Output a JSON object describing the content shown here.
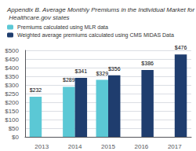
{
  "chart_data": {
    "type": "bar",
    "title": "Appendix B. Average Monthly Premiums in the Individual Market for Healthcare.gov states",
    "categories": [
      "2013",
      "2014",
      "2015",
      "2016",
      "2017"
    ],
    "series": [
      {
        "name": "Premiums calculated using MLR data",
        "color": "#5bc8d5",
        "values": [
          232,
          289,
          329,
          null,
          null
        ],
        "value_labels": [
          "$232",
          "$289",
          "$329",
          null,
          null
        ]
      },
      {
        "name": "Weighted average premiums calculated using CMS MIDAS Data",
        "color": "#1f3d6e",
        "values": [
          null,
          341,
          356,
          386,
          476
        ],
        "value_labels": [
          null,
          "$341",
          "$356",
          "$386",
          "$476"
        ]
      }
    ],
    "ylim": [
      0,
      500
    ],
    "yticks": [
      {
        "value": 0,
        "label": "$0"
      },
      {
        "value": 50,
        "label": "$50"
      },
      {
        "value": 100,
        "label": "$100"
      },
      {
        "value": 150,
        "label": "$150"
      },
      {
        "value": 200,
        "label": "$200"
      },
      {
        "value": 250,
        "label": "$250"
      },
      {
        "value": 300,
        "label": "$300"
      },
      {
        "value": 350,
        "label": "$350"
      },
      {
        "value": 400,
        "label": "$400"
      },
      {
        "value": 450,
        "label": "$450"
      },
      {
        "value": 500,
        "label": "$500"
      }
    ],
    "grid": true,
    "data_labels": true,
    "legend": "top"
  }
}
